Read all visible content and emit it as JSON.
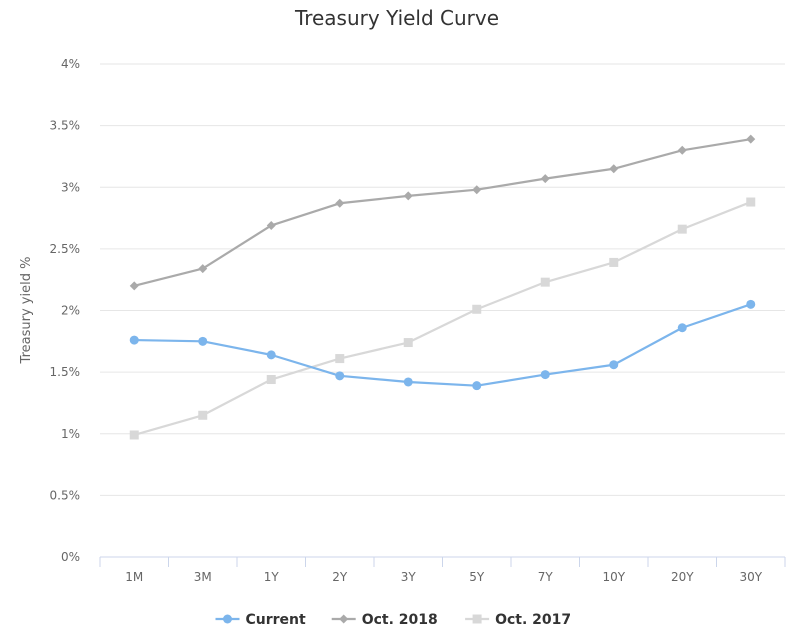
{
  "chart_data": {
    "type": "line",
    "title": "Treasury Yield Curve",
    "xlabel": "",
    "ylabel": "Treasury yield %",
    "categories": [
      "1M",
      "3M",
      "1Y",
      "2Y",
      "3Y",
      "5Y",
      "7Y",
      "10Y",
      "20Y",
      "30Y"
    ],
    "ylim": [
      0,
      4
    ],
    "yticks": [
      "0%",
      "0.5%",
      "1%",
      "1.5%",
      "2%",
      "2.5%",
      "3%",
      "3.5%",
      "4%"
    ],
    "grid": true,
    "legend_position": "bottom-center",
    "series": [
      {
        "name": "Current",
        "color": "#7cb5ec",
        "marker": "circle",
        "values": [
          1.76,
          1.75,
          1.64,
          1.47,
          1.42,
          1.39,
          1.48,
          1.56,
          1.86,
          2.05
        ]
      },
      {
        "name": "Oct. 2018",
        "color": "#aaaaaa",
        "marker": "diamond",
        "values": [
          2.2,
          2.34,
          2.69,
          2.87,
          2.93,
          2.98,
          3.07,
          3.15,
          3.3,
          3.39
        ]
      },
      {
        "name": "Oct. 2017",
        "color": "#d8d8d8",
        "marker": "square",
        "values": [
          0.99,
          1.15,
          1.44,
          1.61,
          1.74,
          2.01,
          2.23,
          2.39,
          2.66,
          2.88
        ]
      }
    ]
  }
}
